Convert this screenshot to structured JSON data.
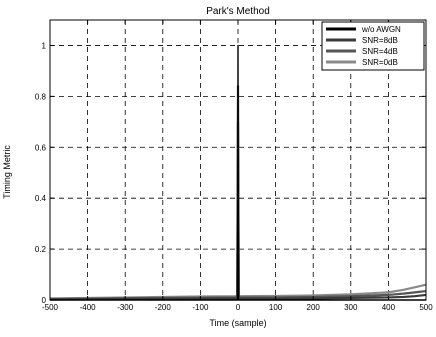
{
  "chart_data": {
    "type": "line",
    "title": "Park's Method",
    "xlabel": "Time (sample)",
    "ylabel": "Timing Metric",
    "xlim": [
      -500,
      500
    ],
    "ylim": [
      0,
      1.1
    ],
    "x_ticks": [
      -500,
      -400,
      -300,
      -200,
      -100,
      0,
      100,
      200,
      300,
      400,
      500
    ],
    "x_tick_labels": [
      "-500",
      "-400",
      "-300",
      "-200",
      "-100",
      "0",
      "100",
      "200",
      "300",
      "400",
      "500"
    ],
    "y_ticks": [
      0,
      0.2,
      0.4,
      0.6,
      0.8,
      1
    ],
    "y_tick_labels": [
      "0",
      "0.2",
      "0.4",
      "0.6",
      "0.8",
      "1"
    ],
    "grid": true,
    "legend_position": "top-right",
    "series": [
      {
        "name": "w/o AWGN",
        "color": "#000000",
        "x": [
          -500,
          -100,
          -1,
          0,
          1,
          100,
          500
        ],
        "y": [
          0,
          0,
          0,
          1.0,
          0,
          0,
          0
        ]
      },
      {
        "name": "SNR=8dB",
        "color": "#3a3a3a",
        "x": [
          -500,
          -400,
          -300,
          -200,
          -100,
          -2,
          0,
          2,
          100,
          200,
          300,
          400,
          440,
          470,
          500
        ],
        "y": [
          0.002,
          0.003,
          0.004,
          0.004,
          0.005,
          0.006,
          0.84,
          0.006,
          0.005,
          0.006,
          0.008,
          0.01,
          0.012,
          0.015,
          0.02
        ]
      },
      {
        "name": "SNR=4dB",
        "color": "#555555",
        "x": [
          -500,
          -400,
          -300,
          -200,
          -100,
          -2,
          0,
          2,
          100,
          200,
          300,
          400,
          440,
          470,
          500
        ],
        "y": [
          0.004,
          0.005,
          0.007,
          0.008,
          0.009,
          0.01,
          0.7,
          0.01,
          0.01,
          0.012,
          0.015,
          0.02,
          0.025,
          0.03,
          0.035
        ]
      },
      {
        "name": "SNR=0dB",
        "color": "#8a8a8a",
        "x": [
          -500,
          -400,
          -300,
          -200,
          -100,
          -2,
          0,
          2,
          100,
          200,
          300,
          400,
          440,
          470,
          500
        ],
        "y": [
          0.006,
          0.008,
          0.01,
          0.012,
          0.014,
          0.015,
          0.54,
          0.015,
          0.016,
          0.018,
          0.022,
          0.03,
          0.04,
          0.05,
          0.06
        ]
      }
    ]
  }
}
